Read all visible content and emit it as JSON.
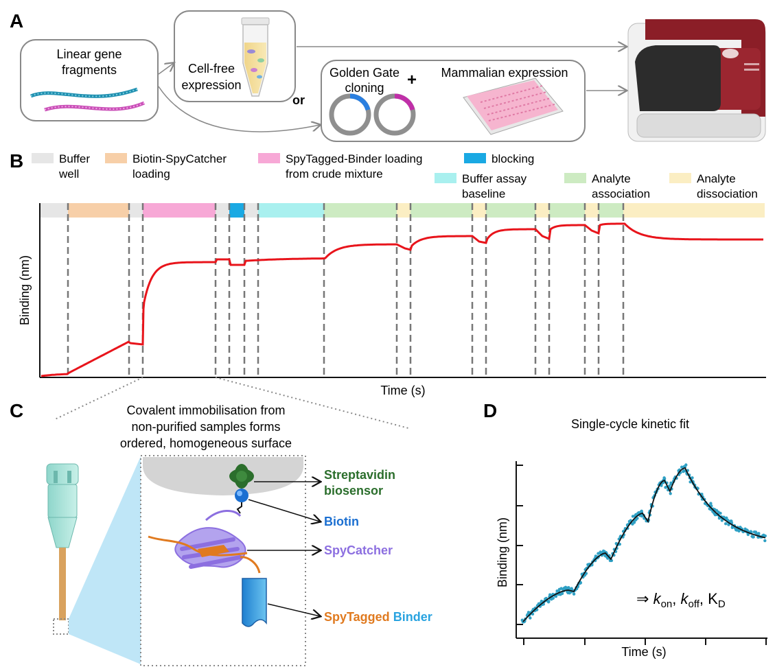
{
  "panels": {
    "a": "A",
    "b": "B",
    "c": "C",
    "d": "D"
  },
  "panel_a": {
    "gene_fragments": [
      "Linear gene",
      "fragments"
    ],
    "cell_free": [
      "Cell-free",
      "expression"
    ],
    "or": "or",
    "golden_gate": [
      "Golden Gate",
      "cloning"
    ],
    "plus": "+",
    "mammalian": "Mammalian expression"
  },
  "panel_b": {
    "legend": [
      {
        "lines": [
          "Buffer",
          "well"
        ],
        "color": "#e6e6e6"
      },
      {
        "lines": [
          "Biotin-SpyCatcher",
          "loading"
        ],
        "color": "#f7cfa8"
      },
      {
        "lines": [
          "SpyTagged-Binder loading",
          "from crude mixture"
        ],
        "color": "#f7a8d6"
      },
      {
        "lines": [
          "blocking"
        ],
        "color": "#1aa9e3"
      },
      {
        "lines": [
          "Buffer assay",
          "baseline"
        ],
        "color": "#a9f0ef"
      },
      {
        "lines": [
          "Analyte",
          "association"
        ],
        "color": "#cdebc2"
      },
      {
        "lines": [
          "Analyte",
          "dissociation"
        ],
        "color": "#fbeec3"
      }
    ],
    "trace_color": "#e8141b",
    "ylabel": "Binding (nm)",
    "xlabel": "Time (s)"
  },
  "panel_c": {
    "caption": [
      "Covalent immobilisation from",
      "non-purified samples forms",
      "ordered, homogeneous surface"
    ],
    "streptavidin": [
      "Streptavidin",
      "biosensor"
    ],
    "biotin": "Biotin",
    "spycatcher": "SpyCatcher",
    "spytagged": "SpyTagged",
    "binder": "Binder",
    "colors": {
      "streptavidin": "#2b6e2c",
      "biotin": "#1b6fd1",
      "spycatcher": "#8c6fe0",
      "spytag": "#e07a1f",
      "binder": "#29a3e0"
    }
  },
  "panel_d": {
    "title": "Single-cycle kinetic fit",
    "ylabel": "Binding (nm)",
    "xlabel": "Time (s)",
    "arrow": "⇒",
    "k": "k",
    "on": "on",
    "off": "off",
    "KD_K": "K",
    "KD_D": "D",
    "comma": ","
  }
}
